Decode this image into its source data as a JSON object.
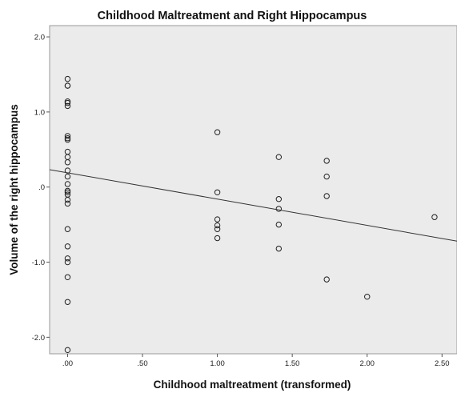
{
  "chart_data": {
    "type": "scatter",
    "title": "Childhood Maltreatment and Right Hippocampus",
    "xlabel": "Childhood maltreatment (transformed)",
    "ylabel": "Volume of the right hippocampus",
    "xlim": [
      -0.12,
      2.6
    ],
    "ylim": [
      -2.22,
      2.15
    ],
    "x_ticks": [
      {
        "value": 0.0,
        "label": ".00"
      },
      {
        "value": 0.5,
        "label": ".50"
      },
      {
        "value": 1.0,
        "label": "1.00"
      },
      {
        "value": 1.5,
        "label": "1.50"
      },
      {
        "value": 2.0,
        "label": "2.00"
      },
      {
        "value": 2.5,
        "label": "2.50"
      }
    ],
    "y_ticks": [
      {
        "value": 2.0,
        "label": "2.0"
      },
      {
        "value": 1.0,
        "label": "1.0"
      },
      {
        "value": 0.0,
        "label": ".0"
      },
      {
        "value": -1.0,
        "label": "-1.0"
      },
      {
        "value": -2.0,
        "label": "-2.0"
      }
    ],
    "grid": false,
    "background": "#ebebeb",
    "marker_color": "#222222",
    "points": [
      {
        "x": 0.0,
        "y": 1.44
      },
      {
        "x": 0.0,
        "y": 1.35
      },
      {
        "x": 0.0,
        "y": 1.35
      },
      {
        "x": 0.0,
        "y": 1.14
      },
      {
        "x": 0.0,
        "y": 1.12
      },
      {
        "x": 0.0,
        "y": 1.08
      },
      {
        "x": 0.0,
        "y": 0.68
      },
      {
        "x": 0.0,
        "y": 0.65
      },
      {
        "x": 0.0,
        "y": 0.63
      },
      {
        "x": 0.0,
        "y": 0.47
      },
      {
        "x": 0.0,
        "y": 0.4
      },
      {
        "x": 0.0,
        "y": 0.33
      },
      {
        "x": 0.0,
        "y": 0.22
      },
      {
        "x": 0.0,
        "y": 0.14
      },
      {
        "x": 0.0,
        "y": 0.04
      },
      {
        "x": 0.0,
        "y": -0.05
      },
      {
        "x": 0.0,
        "y": -0.07
      },
      {
        "x": 0.0,
        "y": -0.1
      },
      {
        "x": 0.0,
        "y": -0.17
      },
      {
        "x": 0.0,
        "y": -0.22
      },
      {
        "x": 0.0,
        "y": -0.56
      },
      {
        "x": 0.0,
        "y": -0.79
      },
      {
        "x": 0.0,
        "y": -0.95
      },
      {
        "x": 0.0,
        "y": -1.0
      },
      {
        "x": 0.0,
        "y": -1.2
      },
      {
        "x": 0.0,
        "y": -1.53
      },
      {
        "x": 0.0,
        "y": -2.17
      },
      {
        "x": 1.0,
        "y": 0.73
      },
      {
        "x": 1.0,
        "y": -0.07
      },
      {
        "x": 1.0,
        "y": -0.43
      },
      {
        "x": 1.0,
        "y": -0.51
      },
      {
        "x": 1.0,
        "y": -0.56
      },
      {
        "x": 1.0,
        "y": -0.68
      },
      {
        "x": 1.41,
        "y": 0.4
      },
      {
        "x": 1.41,
        "y": -0.16
      },
      {
        "x": 1.41,
        "y": -0.29
      },
      {
        "x": 1.41,
        "y": -0.5
      },
      {
        "x": 1.41,
        "y": -0.82
      },
      {
        "x": 1.73,
        "y": 0.35
      },
      {
        "x": 1.73,
        "y": 0.14
      },
      {
        "x": 1.73,
        "y": -0.12
      },
      {
        "x": 1.73,
        "y": -1.23
      },
      {
        "x": 2.0,
        "y": -1.46
      },
      {
        "x": 2.45,
        "y": -0.4
      }
    ],
    "fit_line": {
      "intercept": 0.19,
      "slope": -0.35
    }
  }
}
